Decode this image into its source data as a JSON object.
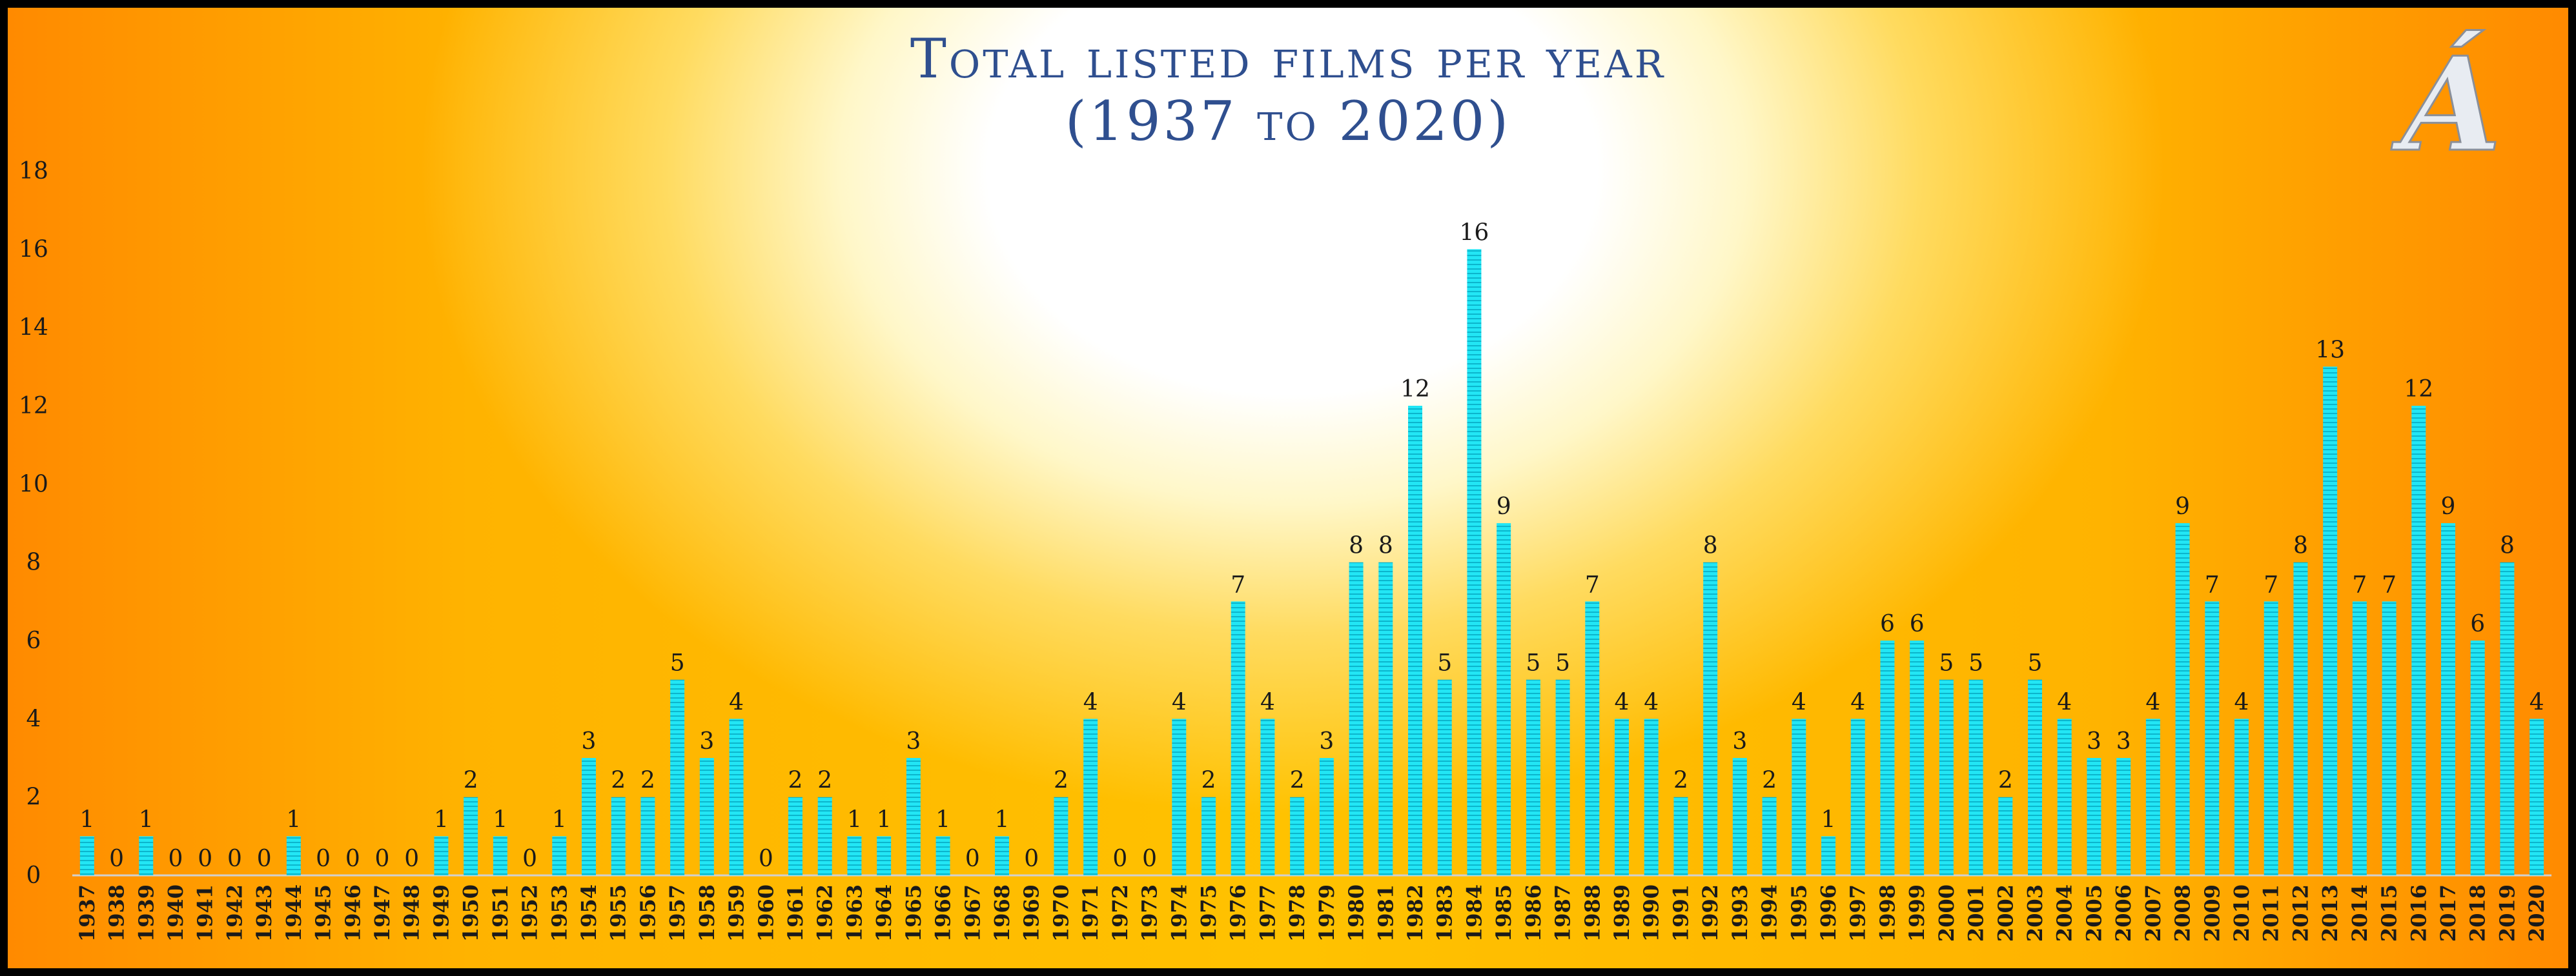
{
  "logo": {
    "glyph": "Á",
    "color": "#e8ecf2"
  },
  "chart_data": {
    "type": "bar",
    "title_line1": "Total listed films per year",
    "title_line2": "(1937 to 2020)",
    "xlabel": "",
    "ylabel": "",
    "ylim": [
      0,
      18
    ],
    "yticks": [
      0,
      2,
      4,
      6,
      8,
      10,
      12,
      14,
      16,
      18
    ],
    "grid": false,
    "legend": "none",
    "bar_color": "#1ee0f0",
    "categories": [
      "1937",
      "1938",
      "1939",
      "1940",
      "1941",
      "1942",
      "1943",
      "1944",
      "1945",
      "1946",
      "1947",
      "1948",
      "1949",
      "1950",
      "1951",
      "1952",
      "1953",
      "1954",
      "1955",
      "1956",
      "1957",
      "1958",
      "1959",
      "1960",
      "1961",
      "1962",
      "1963",
      "1964",
      "1965",
      "1966",
      "1967",
      "1968",
      "1969",
      "1970",
      "1971",
      "1972",
      "1973",
      "1974",
      "1975",
      "1976",
      "1977",
      "1978",
      "1979",
      "1980",
      "1981",
      "1982",
      "1983",
      "1984",
      "1985",
      "1986",
      "1987",
      "1988",
      "1989",
      "1990",
      "1991",
      "1992",
      "1993",
      "1994",
      "1995",
      "1996",
      "1997",
      "1998",
      "1999",
      "2000",
      "2001",
      "2002",
      "2003",
      "2004",
      "2005",
      "2006",
      "2007",
      "2008",
      "2009",
      "2010",
      "2011",
      "2012",
      "2013",
      "2014",
      "2015",
      "2016",
      "2017",
      "2018",
      "2019",
      "2020"
    ],
    "values": [
      1,
      0,
      1,
      0,
      0,
      0,
      0,
      1,
      0,
      0,
      0,
      0,
      1,
      2,
      1,
      0,
      1,
      3,
      2,
      2,
      5,
      3,
      4,
      0,
      2,
      2,
      1,
      1,
      3,
      1,
      0,
      1,
      0,
      2,
      4,
      0,
      0,
      4,
      2,
      7,
      4,
      2,
      3,
      8,
      8,
      12,
      5,
      16,
      9,
      5,
      5,
      7,
      4,
      4,
      2,
      8,
      3,
      2,
      4,
      1,
      4,
      6,
      6,
      5,
      5,
      2,
      5,
      4,
      3,
      3,
      4,
      9,
      7,
      4,
      7,
      8,
      13,
      7,
      7,
      12,
      9,
      6,
      8,
      4
    ]
  }
}
